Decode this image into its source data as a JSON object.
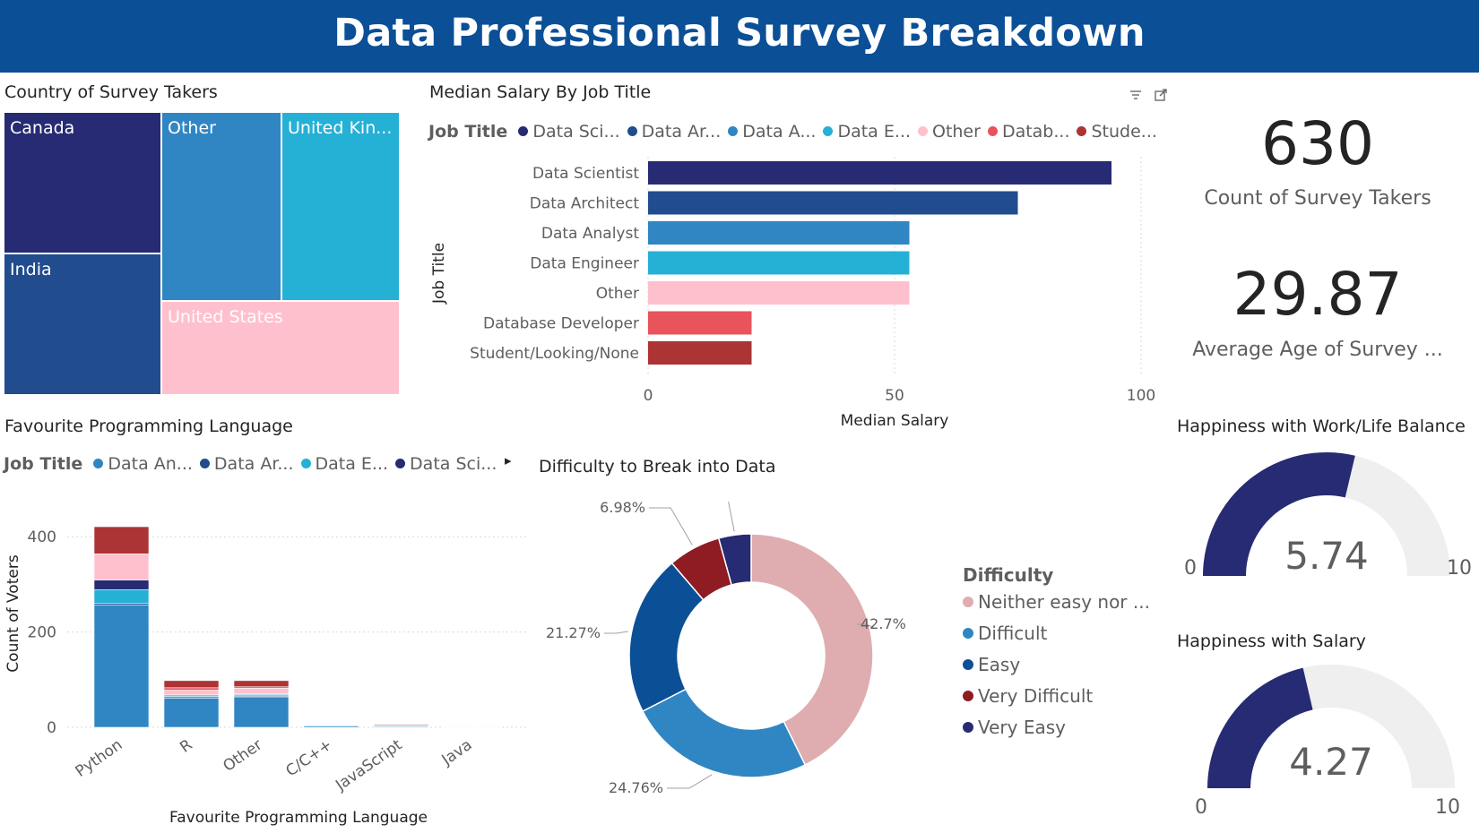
{
  "header": {
    "title": "Data Professional Survey Breakdown"
  },
  "colors": {
    "header_bg": "#0b4f96",
    "navy": "#262b73",
    "blue_dark": "#214c8e",
    "blue": "#2f86c3",
    "teal": "#25b0d6",
    "pink": "#ffc0cd",
    "red_light": "#e8535c",
    "red_dark": "#ad3434",
    "dusty_rose": "#dfadb0",
    "ocean": "#0b4f96",
    "maroon": "#8e1c22",
    "gauge_track": "#efefef"
  },
  "treemap": {
    "title": "Country of Survey Takers",
    "items": [
      {
        "label": "Canada",
        "color": "#262b73"
      },
      {
        "label": "India",
        "color": "#214c8e"
      },
      {
        "label": "Other",
        "color": "#2f86c3"
      },
      {
        "label": "United Kin...",
        "color": "#25b0d6"
      },
      {
        "label": "United States",
        "color": "#ffc0cd"
      }
    ]
  },
  "salary_chart": {
    "title": "Median Salary By Job Title",
    "legend_title": "Job Title",
    "legend": [
      {
        "label": "Data Sci...",
        "color": "#262b73"
      },
      {
        "label": "Data Ar...",
        "color": "#214c8e"
      },
      {
        "label": "Data A...",
        "color": "#2f86c3"
      },
      {
        "label": "Data E...",
        "color": "#25b0d6"
      },
      {
        "label": "Other",
        "color": "#ffc0cd"
      },
      {
        "label": "Datab...",
        "color": "#e8535c"
      },
      {
        "label": "Stude...",
        "color": "#ad3434"
      }
    ]
  },
  "cards": {
    "count": {
      "value": "630",
      "label": "Count of Survey Takers"
    },
    "age": {
      "value": "29.87",
      "label": "Average Age of Survey ..."
    }
  },
  "language_chart": {
    "title": "Favourite Programming Language",
    "legend_title": "Job Title",
    "legend": [
      {
        "label": "Data An...",
        "color": "#2f86c3"
      },
      {
        "label": "Data Ar...",
        "color": "#214c8e"
      },
      {
        "label": "Data E...",
        "color": "#25b0d6"
      },
      {
        "label": "Data Sci...",
        "color": "#262b73"
      }
    ],
    "more_arrow": "▸"
  },
  "difficulty_chart": {
    "title": "Difficulty to Break into Data",
    "legend_title": "Difficulty",
    "legend": [
      {
        "label": "Neither easy nor ...",
        "color": "#dfadb0"
      },
      {
        "label": "Difficult",
        "color": "#2f86c3"
      },
      {
        "label": "Easy",
        "color": "#0b4f96"
      },
      {
        "label": "Very Difficult",
        "color": "#8e1c22"
      },
      {
        "label": "Very Easy",
        "color": "#262b73"
      }
    ]
  },
  "gauges": {
    "worklife": {
      "title": "Happiness with Work/Life Balance",
      "value": "5.74",
      "min": "0",
      "max": "10"
    },
    "salary": {
      "title": "Happiness with Salary",
      "value": "4.27",
      "min": "0",
      "max": "10"
    }
  },
  "chart_data": [
    {
      "type": "treemap",
      "title": "Country of Survey Takers",
      "categories": [
        "Canada",
        "India",
        "Other",
        "United Kin...",
        "United States"
      ]
    },
    {
      "type": "bar",
      "orientation": "horizontal",
      "title": "Median Salary By Job Title",
      "xlabel": "Median Salary",
      "ylabel": "Job Title",
      "categories": [
        "Data Scientist",
        "Data Architect",
        "Data Analyst",
        "Data Engineer",
        "Other",
        "Database Developer",
        "Student/Looking/None"
      ],
      "values": [
        94,
        75,
        53,
        53,
        53,
        21,
        21
      ],
      "colors": [
        "#262b73",
        "#214c8e",
        "#2f86c3",
        "#25b0d6",
        "#ffc0cd",
        "#e8535c",
        "#ad3434"
      ],
      "xticks": [
        "0",
        "50",
        "100"
      ],
      "xlim": [
        0,
        100
      ],
      "grid": true
    },
    {
      "type": "bar",
      "stacked": true,
      "title": "Favourite Programming Language",
      "xlabel": "Favourite Programming Language",
      "ylabel": "Count of Voters",
      "categories": [
        "Python",
        "R",
        "Other",
        "C/C++",
        "JavaScript",
        "Java"
      ],
      "series": [
        {
          "name": "Data Analyst",
          "color": "#2f86c3",
          "values": [
            257,
            61,
            64,
            3,
            2,
            1
          ]
        },
        {
          "name": "Data Architect",
          "color": "#214c8e",
          "values": [
            3,
            3,
            2,
            0,
            0,
            0
          ]
        },
        {
          "name": "Data Engineer",
          "color": "#25b0d6",
          "values": [
            29,
            2,
            3,
            1,
            0,
            0
          ]
        },
        {
          "name": "Data Scientist",
          "color": "#262b73",
          "values": [
            20,
            2,
            1,
            0,
            0,
            0
          ]
        },
        {
          "name": "Other",
          "color": "#ffc0cd",
          "values": [
            55,
            10,
            12,
            0,
            1,
            1
          ]
        },
        {
          "name": "Database Developer",
          "color": "#e8535c",
          "values": [
            0,
            5,
            3,
            0,
            1,
            0
          ]
        },
        {
          "name": "Student/Looking/None",
          "color": "#ad3434",
          "values": [
            57,
            15,
            13,
            1,
            2,
            0
          ]
        }
      ],
      "yticks": [
        "0",
        "200",
        "400"
      ],
      "ylim": [
        0,
        450
      ],
      "grid": true
    },
    {
      "type": "pie",
      "donut": true,
      "title": "Difficulty to Break into Data",
      "categories": [
        "Neither easy nor difficult",
        "Difficult",
        "Easy",
        "Very Difficult",
        "Very Easy"
      ],
      "values": [
        42.7,
        24.76,
        21.27,
        6.98,
        4.29
      ],
      "labels": [
        "42.7%",
        "24.76%",
        "21.27%",
        "6.98%",
        "4.29%"
      ],
      "colors": [
        "#dfadb0",
        "#2f86c3",
        "#0b4f96",
        "#8e1c22",
        "#262b73"
      ]
    },
    {
      "type": "gauge",
      "title": "Happiness with Work/Life Balance",
      "value": 5.74,
      "min": 0,
      "max": 10
    },
    {
      "type": "gauge",
      "title": "Happiness with Salary",
      "value": 4.27,
      "min": 0,
      "max": 10
    }
  ]
}
